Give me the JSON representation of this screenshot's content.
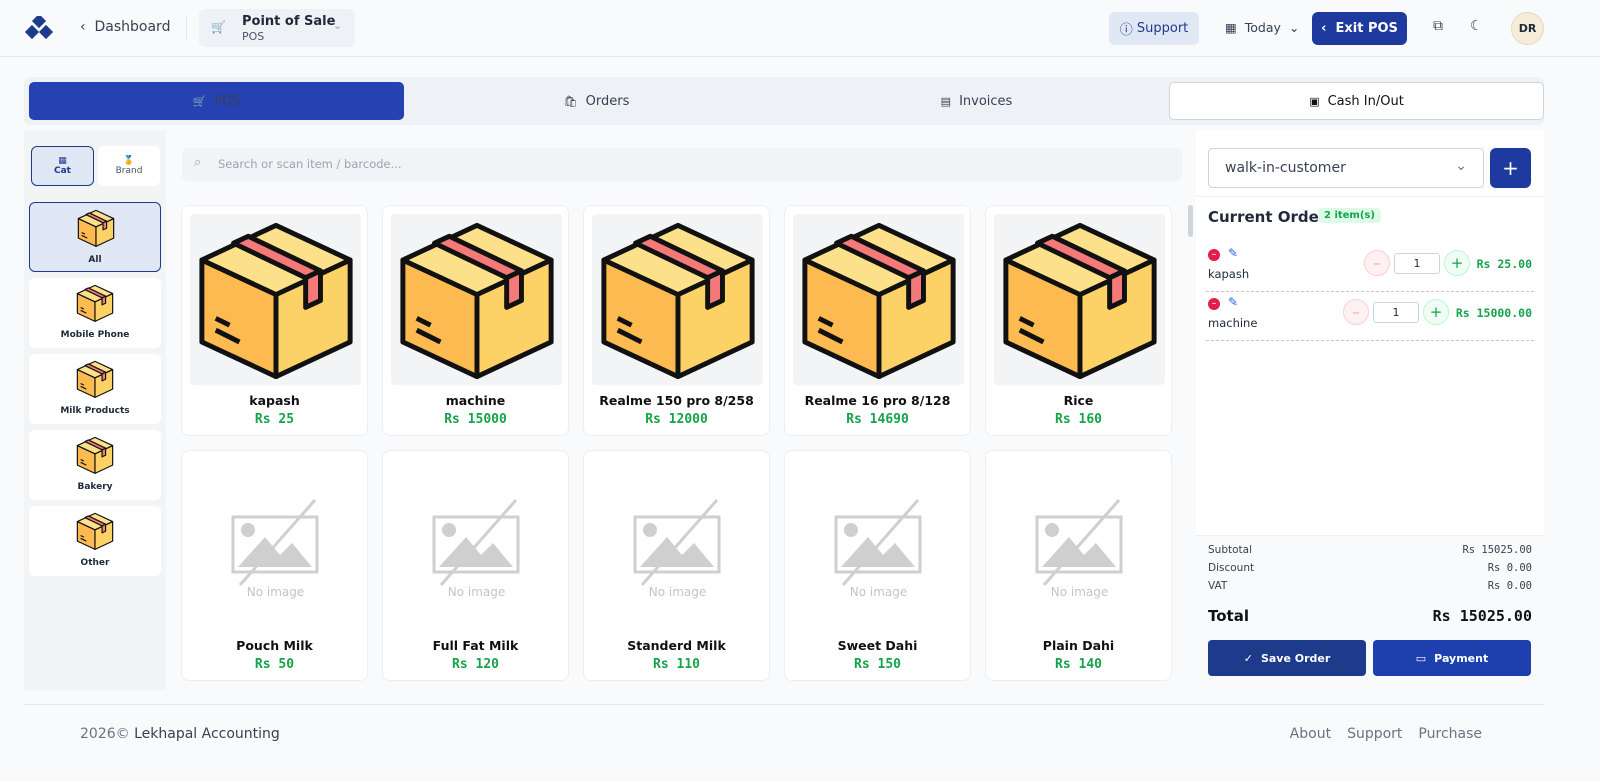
{
  "header": {
    "nav_back": "Dashboard",
    "module_title": "Point of Sale",
    "module_subtitle": "POS",
    "support": "Support",
    "date": "Today",
    "exit": "Exit POS",
    "avatar": "DR"
  },
  "tabs": [
    "POS",
    "Orders",
    "Invoices",
    "Cash In/Out"
  ],
  "filter_toggle": [
    "Cat",
    "Brand"
  ],
  "categories": [
    "All",
    "Mobile Phone",
    "Milk Products",
    "Bakery",
    "Other"
  ],
  "search_placeholder": "Search or scan item / barcode...",
  "products": [
    {
      "name": "kapash",
      "price": "Rs 25"
    },
    {
      "name": "machine",
      "price": "Rs 15000"
    },
    {
      "name": "Realme 150 pro 8/258",
      "price": "Rs 12000"
    },
    {
      "name": "Realme 16 pro 8/128",
      "price": "Rs 14690"
    },
    {
      "name": "Rice",
      "price": "Rs 160"
    },
    {
      "name": "Pouch Milk",
      "price": "Rs 50",
      "placeholder": "No image"
    },
    {
      "name": "Full Fat Milk",
      "price": "Rs 120",
      "placeholder": "No image"
    },
    {
      "name": "Standerd Milk",
      "price": "Rs 110",
      "placeholder": "No image"
    },
    {
      "name": "Sweet Dahi",
      "price": "Rs 150",
      "placeholder": "No image"
    },
    {
      "name": "Plain Dahi",
      "price": "Rs 140",
      "placeholder": "No image"
    }
  ],
  "customer": "walk-in-customer",
  "order": {
    "title": "Current Order",
    "count": "2 item(s)",
    "items": [
      {
        "name": "kapash",
        "qty": "1",
        "amount": "Rs 25.00"
      },
      {
        "name": "machine",
        "qty": "1",
        "amount": "Rs 15000.00"
      }
    ]
  },
  "summary": {
    "rows": [
      {
        "label": "Subtotal",
        "value": "Rs 15025.00"
      },
      {
        "label": "Discount",
        "value": "Rs 0.00"
      },
      {
        "label": "VAT",
        "value": "Rs 0.00"
      }
    ],
    "total_label": "Total",
    "total": "Rs 15025.00"
  },
  "actions": [
    "Save Order",
    "Payment"
  ],
  "footer": {
    "copyright": "2026©",
    "company": "Lekhapal Accounting",
    "links": [
      "About",
      "Support",
      "Purchase"
    ]
  }
}
